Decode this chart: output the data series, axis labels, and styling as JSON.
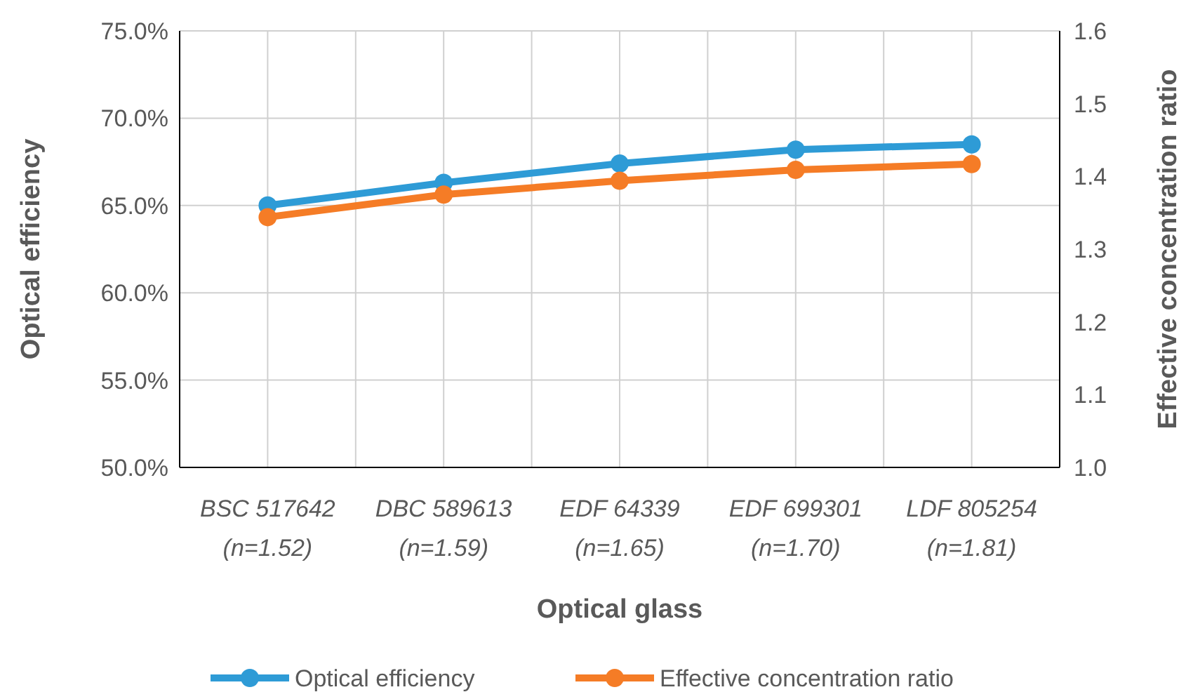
{
  "chart_data": {
    "type": "line",
    "xlabel": "Optical glass",
    "ylabel": "Optical efficiency",
    "y2label": "Effective concentration ratio",
    "categories": [
      "BSC 517642\n(n=1.52)",
      "DBC 589613\n(n=1.59)",
      "EDF 64339\n(n=1.65)",
      "EDF 699301\n(n=1.70)",
      "LDF 805254\n(n=1.81)"
    ],
    "series": [
      {
        "name": "Optical efficiency",
        "color": "#2e9bd6",
        "values": [
          65.0,
          66.3,
          67.4,
          68.2,
          68.5
        ]
      },
      {
        "name": "Effective concentration ratio",
        "color": "#f57c26",
        "axis": "y2",
        "values": [
          1.344,
          1.375,
          1.394,
          1.409,
          1.417
        ]
      }
    ],
    "ylim": [
      50,
      75
    ],
    "yticks": [
      {
        "value": 50,
        "label": "50.0%"
      },
      {
        "value": 55,
        "label": "55.0%"
      },
      {
        "value": 60,
        "label": "60.0%"
      },
      {
        "value": 65,
        "label": "65.0%"
      },
      {
        "value": 70,
        "label": "70.0%"
      },
      {
        "value": 75,
        "label": "75.0%"
      }
    ],
    "y2lim": [
      1.0,
      1.6
    ],
    "y2ticks": [
      {
        "value": 1.0,
        "label": "1.0"
      },
      1.1,
      1.2,
      1.3,
      1.4,
      1.5,
      1.6
    ],
    "grid": true,
    "legend": "bottom",
    "marker": "circle",
    "line_style": "solid"
  }
}
